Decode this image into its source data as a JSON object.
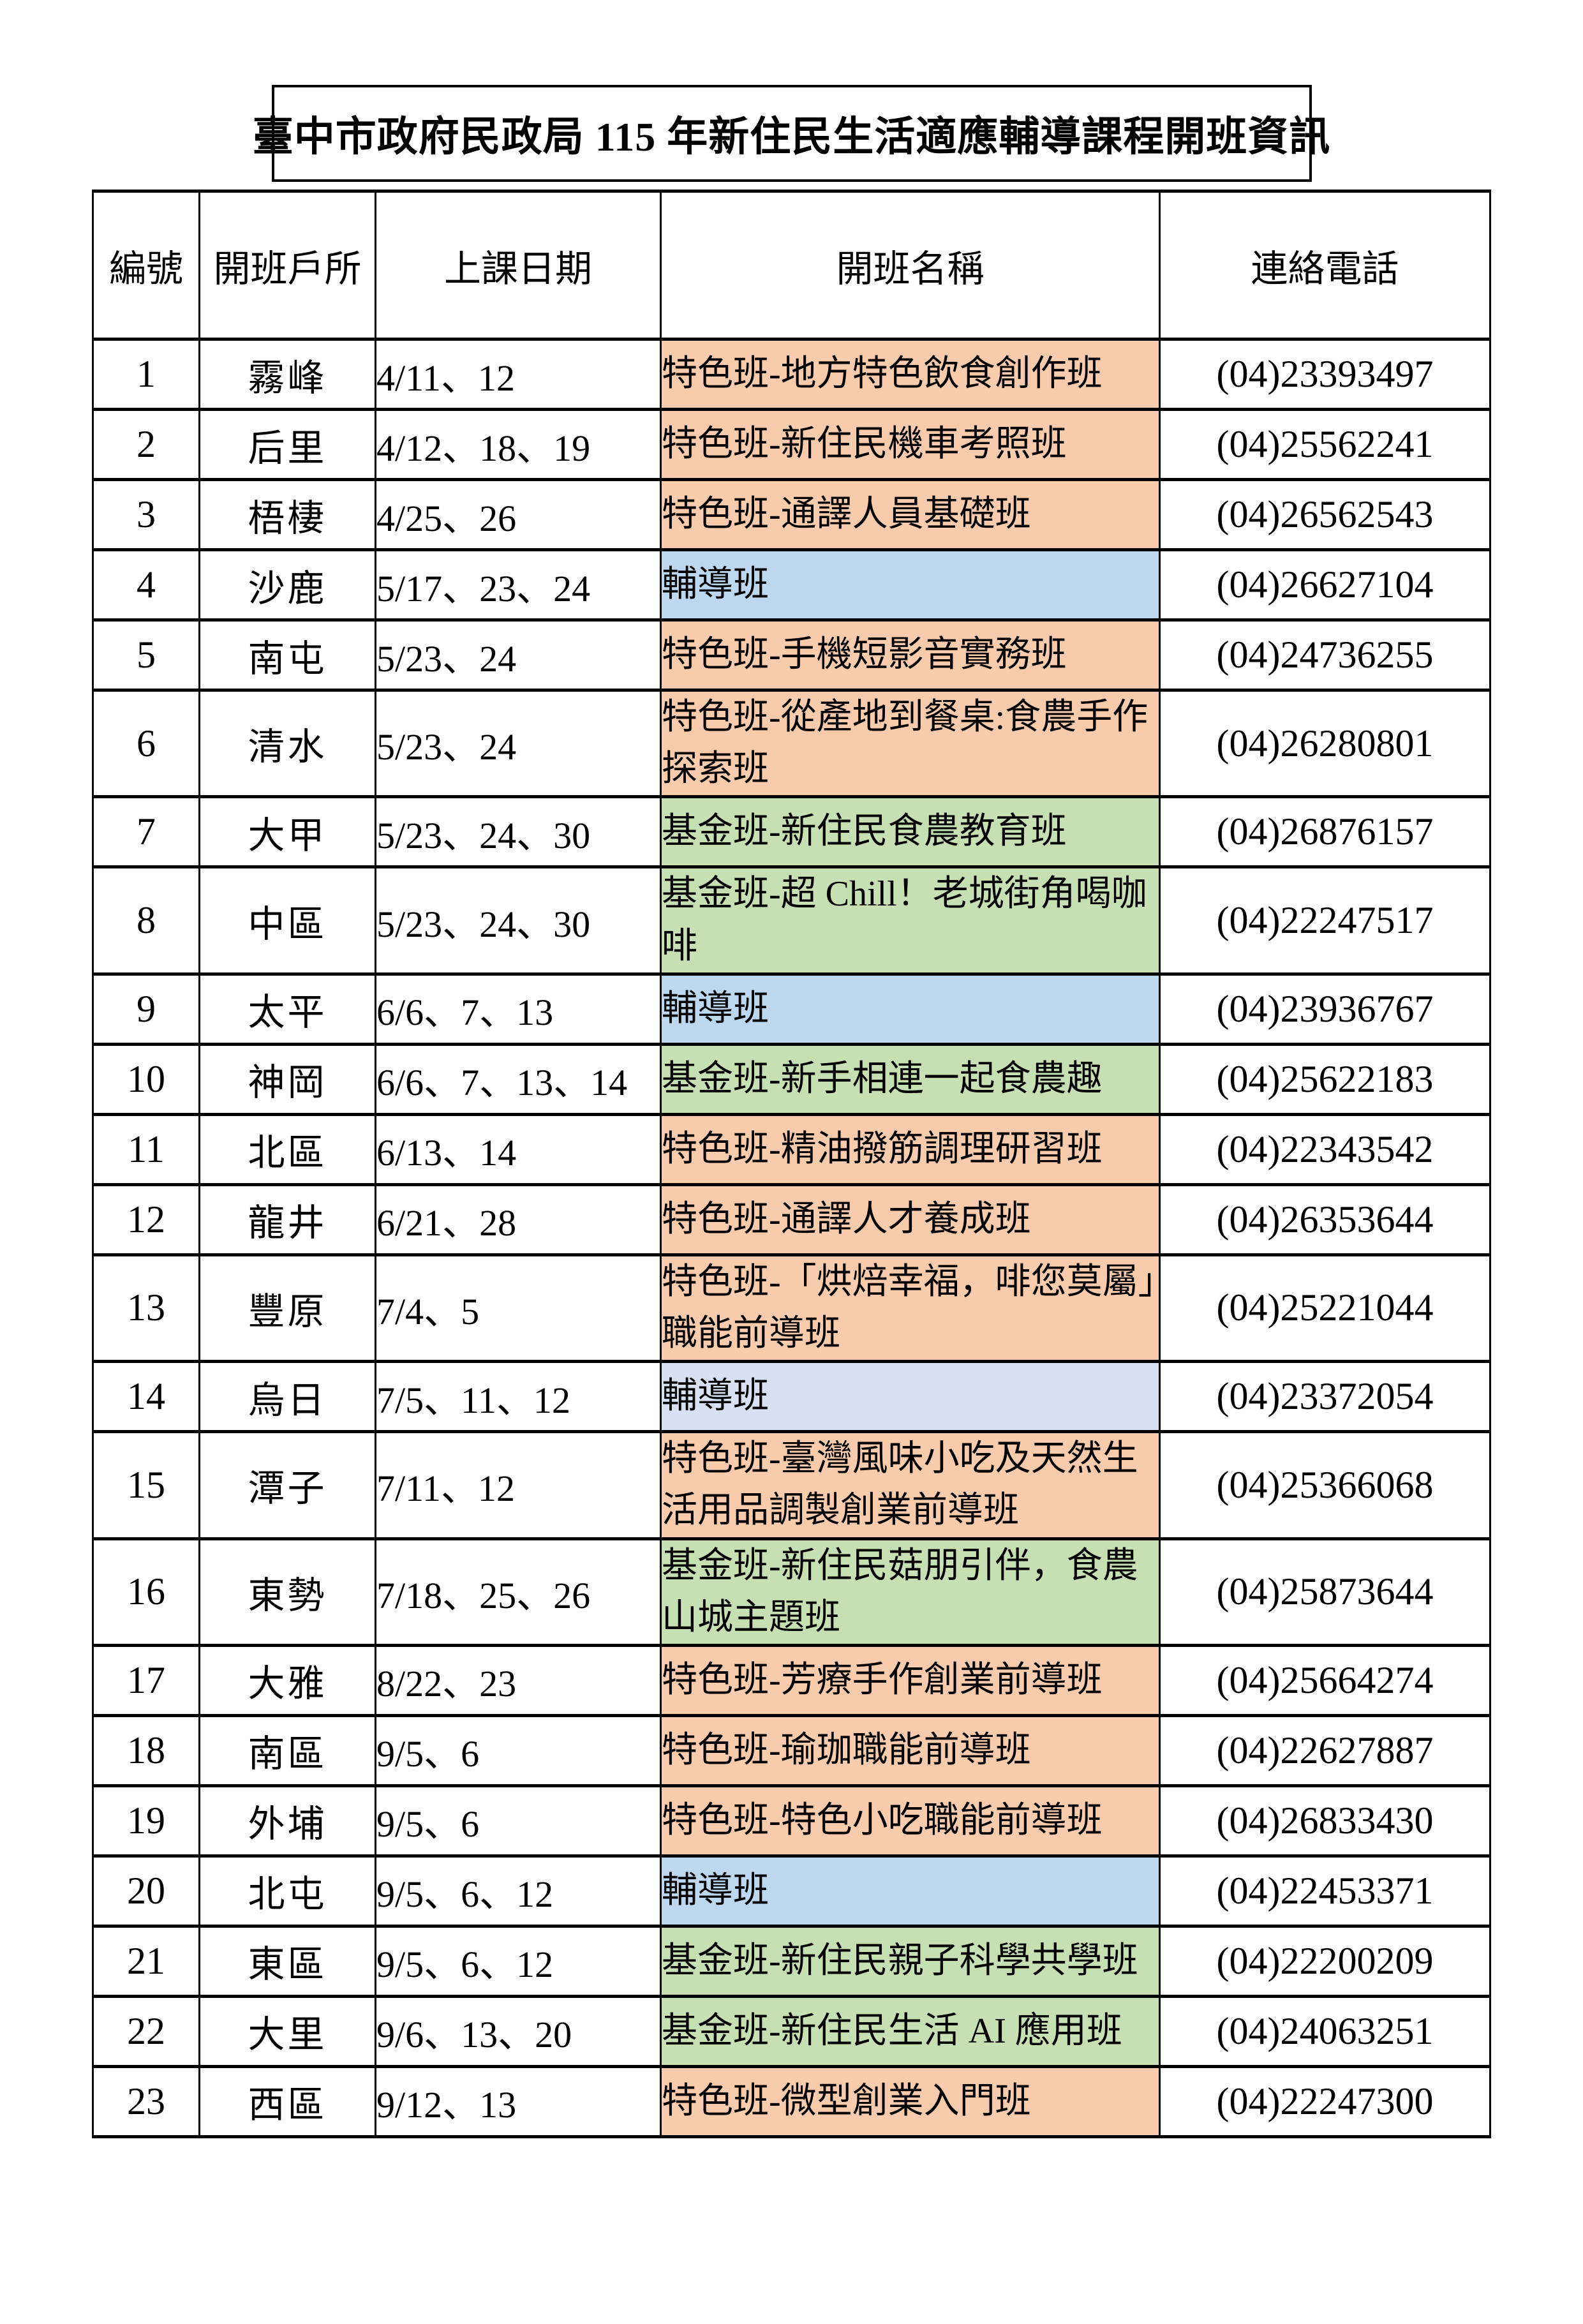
{
  "title": "臺中市政府民政局 115 年新住民生活適應輔導課程開班資訊",
  "colors": {
    "special": "#F8CBAD",
    "fund": "#C6E0B4",
    "guidance": "#BDD7EE",
    "guidance_light": "#D7E1F1"
  },
  "table": {
    "headers": [
      "編號",
      "開班戶所",
      "上課日期",
      "開班名稱",
      "連絡電話"
    ],
    "rows": [
      {
        "no": "1",
        "district": "霧峰",
        "dates": "4/11、12",
        "course": "特色班-地方特色飲食創作班",
        "color": "special",
        "tall": false,
        "phone": "(04)23393497"
      },
      {
        "no": "2",
        "district": "后里",
        "dates": "4/12、18、19",
        "course": "特色班-新住民機車考照班",
        "color": "special",
        "tall": false,
        "phone": "(04)25562241"
      },
      {
        "no": "3",
        "district": "梧棲",
        "dates": "4/25、26",
        "course": "特色班-通譯人員基礎班",
        "color": "special",
        "tall": false,
        "phone": "(04)26562543"
      },
      {
        "no": "4",
        "district": "沙鹿",
        "dates": "5/17、23、24",
        "course": "輔導班",
        "color": "guidance",
        "tall": false,
        "phone": "(04)26627104"
      },
      {
        "no": "5",
        "district": "南屯",
        "dates": "5/23、24",
        "course": "特色班-手機短影音實務班",
        "color": "special",
        "tall": false,
        "phone": "(04)24736255"
      },
      {
        "no": "6",
        "district": "清水",
        "dates": "5/23、24",
        "course": "特色班-從產地到餐桌:食農手作探索班",
        "color": "special",
        "tall": true,
        "phone": "(04)26280801"
      },
      {
        "no": "7",
        "district": "大甲",
        "dates": "5/23、24、30",
        "course": "基金班-新住民食農教育班",
        "color": "fund",
        "tall": false,
        "phone": "(04)26876157"
      },
      {
        "no": "8",
        "district": "中區",
        "dates": "5/23、24、30",
        "course": "基金班-超 Chill！老城街角喝咖啡",
        "color": "fund",
        "tall": true,
        "phone": "(04)22247517"
      },
      {
        "no": "9",
        "district": "太平",
        "dates": "6/6、7、13",
        "course": "輔導班",
        "color": "guidance",
        "tall": false,
        "phone": "(04)23936767"
      },
      {
        "no": "10",
        "district": "神岡",
        "dates": "6/6、7、13、14",
        "course": "基金班-新手相連一起食農趣",
        "color": "fund",
        "tall": false,
        "phone": "(04)25622183"
      },
      {
        "no": "11",
        "district": "北區",
        "dates": "6/13、14",
        "course": "特色班-精油撥筋調理研習班",
        "color": "special",
        "tall": false,
        "phone": "(04)22343542"
      },
      {
        "no": "12",
        "district": "龍井",
        "dates": "6/21、28",
        "course": "特色班-通譯人才養成班",
        "color": "special",
        "tall": false,
        "phone": "(04)26353644"
      },
      {
        "no": "13",
        "district": "豐原",
        "dates": "7/4、5",
        "course": "特色班-「烘焙幸福，啡您莫屬」職能前導班",
        "color": "special",
        "tall": true,
        "phone": "(04)25221044"
      },
      {
        "no": "14",
        "district": "烏日",
        "dates": "7/5、11、12",
        "course": "輔導班",
        "color": "guidance_light",
        "tall": false,
        "phone": "(04)23372054"
      },
      {
        "no": "15",
        "district": "潭子",
        "dates": "7/11、12",
        "course": "特色班-臺灣風味小吃及天然生活用品調製創業前導班",
        "color": "special",
        "tall": true,
        "phone": "(04)25366068"
      },
      {
        "no": "16",
        "district": "東勢",
        "dates": "7/18、25、26",
        "course": "基金班-新住民菇朋引伴，食農山城主題班",
        "color": "fund",
        "tall": true,
        "phone": "(04)25873644"
      },
      {
        "no": "17",
        "district": "大雅",
        "dates": "8/22、23",
        "course": "特色班-芳療手作創業前導班",
        "color": "special",
        "tall": false,
        "phone": "(04)25664274"
      },
      {
        "no": "18",
        "district": "南區",
        "dates": "9/5、6",
        "course": "特色班-瑜珈職能前導班",
        "color": "special",
        "tall": false,
        "phone": "(04)22627887"
      },
      {
        "no": "19",
        "district": "外埔",
        "dates": "9/5、6",
        "course": "特色班-特色小吃職能前導班",
        "color": "special",
        "tall": false,
        "phone": "(04)26833430"
      },
      {
        "no": "20",
        "district": "北屯",
        "dates": "9/5、6、12",
        "course": "輔導班",
        "color": "guidance",
        "tall": false,
        "phone": "(04)22453371"
      },
      {
        "no": "21",
        "district": "東區",
        "dates": "9/5、6、12",
        "course": "基金班-新住民親子科學共學班",
        "color": "fund",
        "tall": false,
        "phone": "(04)22200209"
      },
      {
        "no": "22",
        "district": "大里",
        "dates": "9/6、13、20",
        "course": "基金班-新住民生活 AI 應用班",
        "color": "fund",
        "tall": false,
        "phone": "(04)24063251"
      },
      {
        "no": "23",
        "district": "西區",
        "dates": "9/12、13",
        "course": "特色班-微型創業入門班",
        "color": "special",
        "tall": false,
        "phone": "(04)22247300"
      }
    ]
  }
}
